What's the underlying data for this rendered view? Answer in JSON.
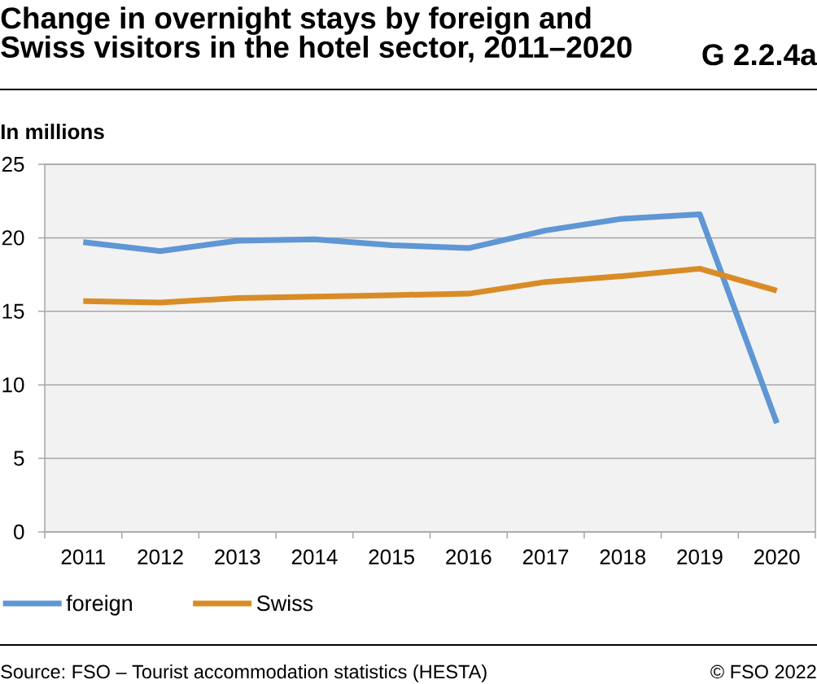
{
  "chart_data": {
    "type": "line",
    "title": "Change in overnight stays by foreign and Swiss visitors in the hotel sector, 2011–2020",
    "ylabel": "In millions",
    "categories": [
      "2011",
      "2012",
      "2013",
      "2014",
      "2015",
      "2016",
      "2017",
      "2018",
      "2019",
      "2020"
    ],
    "series": [
      {
        "name": "foreign",
        "color": "#5f96d4",
        "values": [
          19.7,
          19.1,
          19.8,
          19.9,
          19.5,
          19.3,
          20.5,
          21.3,
          21.6,
          7.4
        ]
      },
      {
        "name": "Swiss",
        "color": "#d98c26",
        "values": [
          15.7,
          15.6,
          15.9,
          16.0,
          16.1,
          16.2,
          17.0,
          17.4,
          17.9,
          16.4
        ]
      }
    ],
    "ylim": [
      0,
      25
    ],
    "yticks": [
      0,
      5,
      10,
      15,
      20,
      25
    ],
    "grid": "y",
    "legend": "bottom",
    "marker": "none",
    "line_style": "solid",
    "annotations": [
      "G 2.2.4a",
      "Source: FSO – Tourist accommodation statistics (HESTA)",
      "© FSO 2022"
    ]
  }
}
